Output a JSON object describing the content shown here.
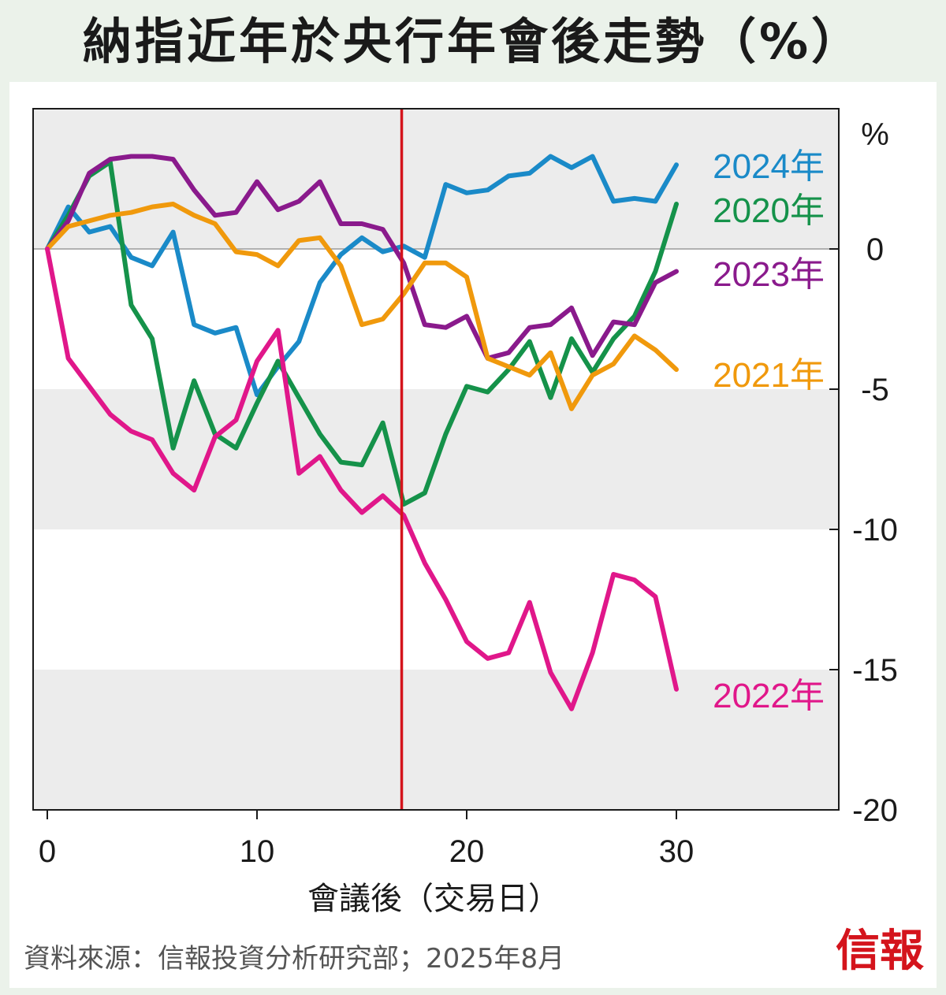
{
  "title": "納指近年於央行年會後走勢（%）",
  "source": "資料來源：信報投資分析研究部；2025年8月",
  "logo": "信報",
  "chart_data": {
    "type": "line",
    "title": "納指近年於央行年會後走勢（%）",
    "xlabel": "會議後（交易日）",
    "ylabel": "%",
    "xlim": [
      0,
      38
    ],
    "ylim": [
      -20,
      5
    ],
    "xticks": [
      0,
      10,
      20,
      30
    ],
    "yticks": [
      0,
      -5,
      -10,
      -15,
      -20
    ],
    "grid": "alternating horizontal bands",
    "vertical_marker_x": 16.9,
    "vertical_marker_color": "#d4141c",
    "legend": "series labels at right end of lines",
    "series": [
      {
        "name": "2024年",
        "color": "#1a8ac8",
        "values": [
          0,
          1.5,
          0.6,
          0.8,
          -0.3,
          -0.6,
          0.6,
          -2.7,
          -3.0,
          -2.8,
          -5.2,
          -4.2,
          -3.3,
          -1.2,
          -0.2,
          0.4,
          -0.1,
          0.1,
          -0.3,
          2.3,
          2.0,
          2.1,
          2.6,
          2.7,
          3.3,
          2.9,
          3.3,
          1.7,
          1.8,
          1.7,
          3.0
        ]
      },
      {
        "name": "2020年",
        "color": "#15924a",
        "values": [
          0,
          1.2,
          2.6,
          3.1,
          -2.0,
          -3.2,
          -7.1,
          -4.7,
          -6.6,
          -7.1,
          -5.5,
          -4.0,
          -5.3,
          -6.6,
          -7.6,
          -7.7,
          -6.2,
          -9.1,
          -8.7,
          -6.6,
          -4.9,
          -5.1,
          -4.3,
          -3.3,
          -5.3,
          -3.2,
          -4.4,
          -3.2,
          -2.4,
          -0.8,
          1.6
        ]
      },
      {
        "name": "2023年",
        "color": "#8a1a8c",
        "values": [
          0,
          1.0,
          2.7,
          3.2,
          3.3,
          3.3,
          3.2,
          2.1,
          1.2,
          1.3,
          2.4,
          1.4,
          1.7,
          2.4,
          0.9,
          0.9,
          0.7,
          -0.5,
          -2.7,
          -2.8,
          -2.4,
          -3.9,
          -3.7,
          -2.8,
          -2.7,
          -2.1,
          -3.8,
          -2.6,
          -2.7,
          -1.2,
          -0.8
        ]
      },
      {
        "name": "2021年",
        "color": "#f0990c",
        "values": [
          0,
          0.8,
          1.0,
          1.2,
          1.3,
          1.5,
          1.6,
          1.2,
          0.9,
          -0.1,
          -0.2,
          -0.6,
          0.3,
          0.4,
          -0.6,
          -2.7,
          -2.5,
          -1.6,
          -0.5,
          -0.5,
          -1.0,
          -3.9,
          -4.2,
          -4.5,
          -3.7,
          -5.7,
          -4.5,
          -4.1,
          -3.1,
          -3.6,
          -4.3
        ]
      },
      {
        "name": "2022年",
        "color": "#e0178a",
        "values": [
          0,
          -3.9,
          -4.9,
          -5.9,
          -6.5,
          -6.8,
          -8.0,
          -8.6,
          -6.7,
          -6.1,
          -4.0,
          -2.9,
          -8.0,
          -7.4,
          -8.6,
          -9.4,
          -8.8,
          -9.5,
          -11.2,
          -12.5,
          -14.0,
          -14.6,
          -14.4,
          -12.6,
          -15.1,
          -16.4,
          -14.4,
          -11.6,
          -11.8,
          -12.4,
          -15.7
        ]
      }
    ]
  }
}
